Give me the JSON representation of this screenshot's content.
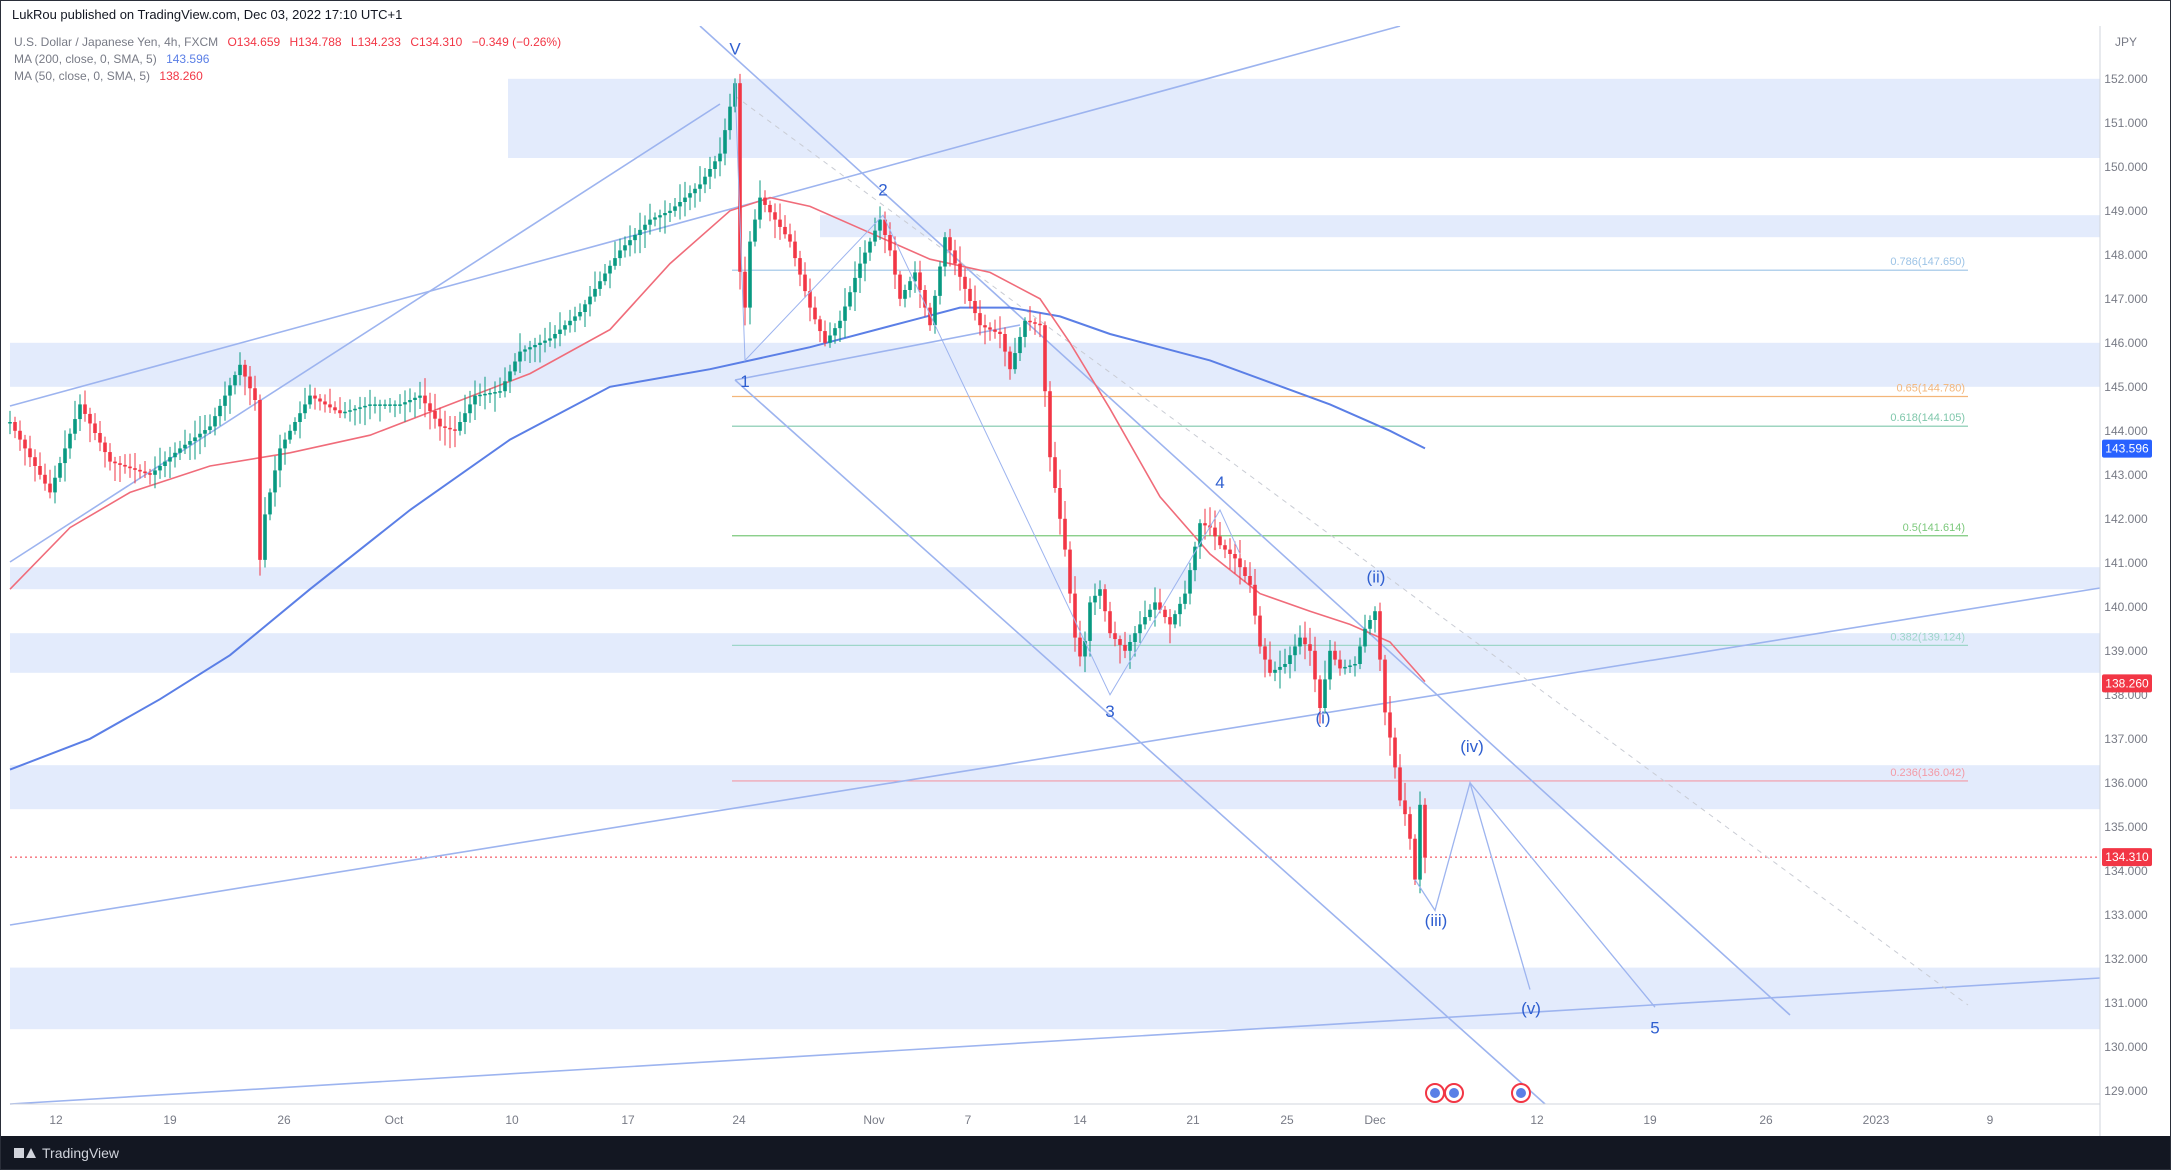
{
  "header": {
    "published_by": "LukRou published on TradingView.com, Dec 03, 2022 17:10 UTC+1"
  },
  "legend": {
    "symbol": "U.S. Dollar / Japanese Yen, 4h, FXCM",
    "open": "O134.659",
    "high": "H134.788",
    "low": "L134.233",
    "close": "C134.310",
    "change": "−0.349 (−0.26%)",
    "ma200_label": "MA (200, close, 0, SMA, 5)",
    "ma200_value": "143.596",
    "ma50_label": "MA (50, close, 0, SMA, 5)",
    "ma50_value": "138.260"
  },
  "footer": {
    "brand": "TradingView"
  },
  "colors": {
    "candle_up": "#089981",
    "candle_down": "#f23645",
    "ma200": "#5b7fe6",
    "ma50": "#f06c7a",
    "zone": "#e3ebfc",
    "trendline": "#9db4ef",
    "wave_label": "#2f5fd0",
    "axis_text": "#787b86"
  },
  "chart_data": {
    "type": "candlestick",
    "currency": "JPY",
    "ylim": [
      128.7,
      153.2
    ],
    "price_ticks": [
      "129.000",
      "130.000",
      "131.000",
      "132.000",
      "133.000",
      "134.000",
      "135.000",
      "136.000",
      "137.000",
      "138.000",
      "139.000",
      "140.000",
      "141.000",
      "142.000",
      "143.000",
      "144.000",
      "145.000",
      "146.000",
      "147.000",
      "148.000",
      "149.000",
      "150.000",
      "151.000",
      "152.000"
    ],
    "date_ticks": [
      "12",
      "19",
      "26",
      "Oct",
      "10",
      "17",
      "24",
      "Nov",
      "7",
      "14",
      "21",
      "25",
      "Dec",
      "12",
      "19",
      "26",
      "2023",
      "9"
    ],
    "axis_badges": [
      {
        "label": "143.596",
        "value": 143.596,
        "color": "#2962ff"
      },
      {
        "label": "138.260",
        "value": 138.26,
        "color": "#f23645"
      },
      {
        "label": "134.310",
        "value": 134.31,
        "color": "#f23645"
      }
    ],
    "current_price": 134.31,
    "series": [
      {
        "name": "MA (200, close, 0, SMA, 5)",
        "points": [
          [
            0,
            136.3
          ],
          [
            80,
            137.0
          ],
          [
            150,
            137.9
          ],
          [
            220,
            138.9
          ],
          [
            300,
            140.4
          ],
          [
            400,
            142.2
          ],
          [
            500,
            143.8
          ],
          [
            600,
            145.0
          ],
          [
            700,
            145.4
          ],
          [
            800,
            145.9
          ],
          [
            900,
            146.5
          ],
          [
            950,
            146.8
          ],
          [
            1000,
            146.8
          ],
          [
            1050,
            146.6
          ],
          [
            1100,
            146.2
          ],
          [
            1150,
            145.9
          ],
          [
            1200,
            145.6
          ],
          [
            1260,
            145.1
          ],
          [
            1320,
            144.6
          ],
          [
            1380,
            144.0
          ],
          [
            1415,
            143.6
          ]
        ]
      },
      {
        "name": "MA (50, close, 0, SMA, 5)",
        "points": [
          [
            0,
            140.4
          ],
          [
            60,
            141.8
          ],
          [
            120,
            142.6
          ],
          [
            200,
            143.2
          ],
          [
            280,
            143.5
          ],
          [
            360,
            143.9
          ],
          [
            440,
            144.6
          ],
          [
            520,
            145.3
          ],
          [
            600,
            146.3
          ],
          [
            660,
            147.8
          ],
          [
            720,
            149.0
          ],
          [
            760,
            149.3
          ],
          [
            800,
            149.1
          ],
          [
            860,
            148.5
          ],
          [
            920,
            147.9
          ],
          [
            980,
            147.6
          ],
          [
            1030,
            147.0
          ],
          [
            1060,
            146.0
          ],
          [
            1100,
            144.5
          ],
          [
            1150,
            142.5
          ],
          [
            1200,
            141.2
          ],
          [
            1250,
            140.3
          ],
          [
            1300,
            139.9
          ],
          [
            1340,
            139.6
          ],
          [
            1380,
            139.2
          ],
          [
            1415,
            138.3
          ]
        ]
      }
    ],
    "price_path": [
      [
        0,
        144.2
      ],
      [
        40,
        142.6
      ],
      [
        70,
        144.6
      ],
      [
        100,
        143.3
      ],
      [
        140,
        143.0
      ],
      [
        170,
        143.6
      ],
      [
        200,
        144.1
      ],
      [
        230,
        145.5
      ],
      [
        245,
        144.7
      ],
      [
        248,
        140.6
      ],
      [
        254,
        142.0
      ],
      [
        270,
        143.6
      ],
      [
        300,
        144.8
      ],
      [
        330,
        144.4
      ],
      [
        360,
        144.6
      ],
      [
        390,
        144.6
      ],
      [
        410,
        144.8
      ],
      [
        430,
        144.1
      ],
      [
        445,
        144.0
      ],
      [
        465,
        144.8
      ],
      [
        490,
        144.9
      ],
      [
        510,
        145.8
      ],
      [
        540,
        146.1
      ],
      [
        570,
        146.7
      ],
      [
        590,
        147.4
      ],
      [
        610,
        148.1
      ],
      [
        640,
        148.8
      ],
      [
        660,
        149.0
      ],
      [
        690,
        149.6
      ],
      [
        710,
        150.3
      ],
      [
        725,
        151.9
      ],
      [
        732,
        145.9
      ],
      [
        740,
        148.3
      ],
      [
        750,
        149.3
      ],
      [
        765,
        148.8
      ],
      [
        780,
        148.3
      ],
      [
        800,
        146.8
      ],
      [
        815,
        146.0
      ],
      [
        830,
        146.5
      ],
      [
        850,
        147.8
      ],
      [
        870,
        148.8
      ],
      [
        880,
        148.1
      ],
      [
        890,
        147.0
      ],
      [
        905,
        147.6
      ],
      [
        920,
        146.4
      ],
      [
        935,
        148.4
      ],
      [
        950,
        147.5
      ],
      [
        970,
        146.4
      ],
      [
        990,
        146.2
      ],
      [
        1000,
        145.4
      ],
      [
        1015,
        146.5
      ],
      [
        1030,
        146.4
      ],
      [
        1040,
        143.4
      ],
      [
        1055,
        141.3
      ],
      [
        1065,
        139.3
      ],
      [
        1072,
        138.7
      ],
      [
        1080,
        140.1
      ],
      [
        1090,
        140.4
      ],
      [
        1100,
        139.4
      ],
      [
        1115,
        139.0
      ],
      [
        1130,
        139.6
      ],
      [
        1145,
        140.1
      ],
      [
        1160,
        139.6
      ],
      [
        1175,
        140.3
      ],
      [
        1190,
        141.9
      ],
      [
        1200,
        141.8
      ],
      [
        1210,
        141.4
      ],
      [
        1225,
        141.1
      ],
      [
        1240,
        140.5
      ],
      [
        1250,
        139.1
      ],
      [
        1260,
        138.5
      ],
      [
        1275,
        138.7
      ],
      [
        1290,
        139.3
      ],
      [
        1300,
        139.0
      ],
      [
        1310,
        137.7
      ],
      [
        1320,
        139.0
      ],
      [
        1330,
        138.6
      ],
      [
        1345,
        138.7
      ],
      [
        1355,
        139.5
      ],
      [
        1365,
        139.9
      ],
      [
        1370,
        138.8
      ],
      [
        1375,
        137.6
      ],
      [
        1382,
        136.8
      ],
      [
        1390,
        135.6
      ],
      [
        1398,
        135.1
      ],
      [
        1405,
        133.8
      ],
      [
        1410,
        135.5
      ],
      [
        1415,
        134.3
      ]
    ],
    "zones": [
      [
        150.2,
        152.0
      ],
      [
        148.4,
        148.9
      ],
      [
        145.0,
        146.0
      ],
      [
        140.4,
        140.9
      ],
      [
        138.5,
        139.4
      ],
      [
        135.4,
        136.4
      ],
      [
        130.4,
        131.8
      ]
    ],
    "fibonacci": [
      {
        "label": "0.786(147.650)",
        "value": 147.65,
        "color": "#9cc3e6"
      },
      {
        "label": "0.65(144.780)",
        "value": 144.78,
        "color": "#f3b67a"
      },
      {
        "label": "0.618(144.105)",
        "value": 144.105,
        "color": "#7fc7ab"
      },
      {
        "label": "0.5(141.614)",
        "value": 141.614,
        "color": "#7cc97c"
      },
      {
        "label": "0.382(139.124)",
        "value": 139.124,
        "color": "#9ed6c9"
      },
      {
        "label": "0.236(136.042)",
        "value": 136.042,
        "color": "#f39aa6"
      }
    ],
    "wave_labels": [
      {
        "text": "V",
        "x": 725,
        "y": 152.55
      },
      {
        "text": "1",
        "x": 735,
        "y": 145.0
      },
      {
        "text": "2",
        "x": 873,
        "y": 149.35
      },
      {
        "text": "3",
        "x": 1100,
        "y": 137.5
      },
      {
        "text": "4",
        "x": 1210,
        "y": 142.7
      },
      {
        "text": "(ii)",
        "x": 1366,
        "y": 140.55
      },
      {
        "text": "(i)",
        "x": 1313,
        "y": 137.35
      },
      {
        "text": "(iv)",
        "x": 1462,
        "y": 136.7
      },
      {
        "text": "(iii)",
        "x": 1426,
        "y": 132.75
      },
      {
        "text": "(v)",
        "x": 1521,
        "y": 130.75
      },
      {
        "text": "5",
        "x": 1645,
        "y": 130.3
      }
    ],
    "projection_path": [
      [
        1405,
        133.8
      ],
      [
        1425,
        133.1
      ],
      [
        1460,
        136.0
      ],
      [
        1520,
        131.3
      ]
    ],
    "projection_path_5": [
      [
        1460,
        136.0
      ],
      [
        1645,
        130.9
      ]
    ]
  }
}
